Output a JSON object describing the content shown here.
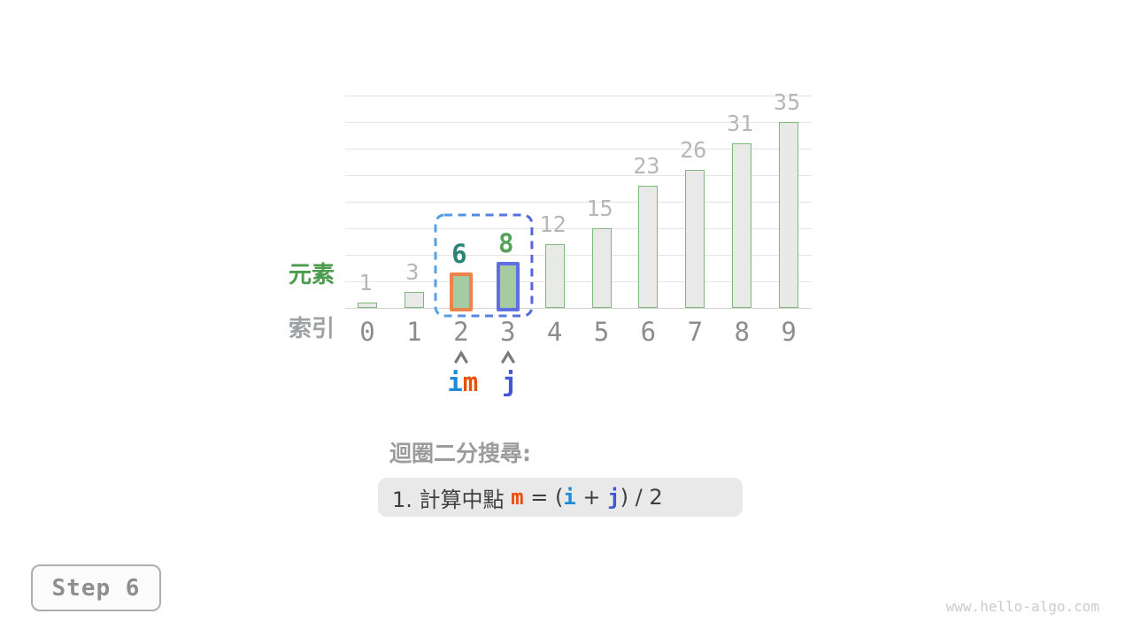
{
  "chart_data": {
    "type": "bar",
    "title": "",
    "categories": [
      "0",
      "1",
      "2",
      "3",
      "4",
      "5",
      "6",
      "7",
      "8",
      "9"
    ],
    "values": [
      1,
      3,
      6,
      8,
      12,
      15,
      23,
      26,
      31,
      35
    ],
    "xlabel": "索引",
    "ylabel": "元素",
    "ylim": [
      0,
      40
    ],
    "grid_step": 5,
    "grid": true,
    "legend": "none",
    "bar_style": {
      "fill": "#E9EAE7",
      "border": "#7DB87D"
    },
    "value_label_color": "#B5B8B5",
    "index_label_color": "#8A8D90",
    "highlights": [
      {
        "index": 2,
        "border": "#F0824E",
        "fill": "#A5CBA3",
        "label_color": "#2A8577"
      },
      {
        "index": 3,
        "border": "#5F6FE0",
        "fill": "#A5CBA3",
        "label_color": "#56A25A"
      }
    ],
    "range_box": {
      "from_index": 2,
      "to_index": 3,
      "gradient_start": "#55A1E8",
      "gradient_end": "#5566DC"
    },
    "pointers": [
      {
        "index": 2,
        "labels": [
          {
            "text": "i",
            "color": "#1E8AD8"
          },
          {
            "text": "m",
            "color": "#E8500E"
          }
        ]
      },
      {
        "index": 3,
        "labels": [
          {
            "text": "j",
            "color": "#4456D6"
          }
        ]
      }
    ],
    "arrow_color": "#7B7B7B"
  },
  "caption": "迴圈二分搜尋:",
  "formula": {
    "segments": [
      {
        "text": "1. 計算中點 "
      },
      {
        "text": "m",
        "color": "#E8500E",
        "bold": true
      },
      {
        "text": " = ("
      },
      {
        "text": "i",
        "color": "#1E8AD8",
        "bold": true
      },
      {
        "text": " + "
      },
      {
        "text": "j",
        "color": "#4456D6",
        "bold": true
      },
      {
        "text": ") / 2"
      }
    ]
  },
  "step_label": "Step 6",
  "watermark": "www.hello-algo.com"
}
